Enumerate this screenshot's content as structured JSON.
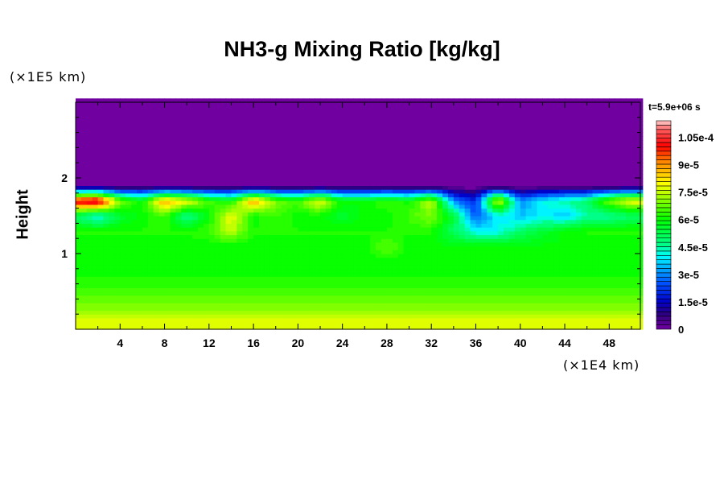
{
  "chart_data": {
    "type": "heatmap",
    "title": "NH3-g Mixing Ratio [kg/kg]",
    "ylabel": "Height",
    "yunit": "(×1E5 km)",
    "xunit": "(×1E4 km)",
    "time_label": "t=5.9e+06 s",
    "xlim": [
      0,
      50.8
    ],
    "ylim": [
      0,
      3
    ],
    "xticks": [
      4,
      8,
      12,
      16,
      20,
      24,
      28,
      32,
      36,
      40,
      44,
      48
    ],
    "xtick_labels": [
      "4",
      "8",
      "12",
      "16",
      "20",
      "24",
      "28",
      "32",
      "36",
      "40",
      "44",
      "48"
    ],
    "yticks": [
      1,
      2
    ],
    "ytick_labels": [
      "1",
      "2"
    ],
    "colorbar": {
      "min": 0,
      "max": 11.4,
      "scale": 1e-05,
      "levels": 48,
      "ticks": [
        0,
        1.5,
        3,
        4.5,
        6,
        7.5,
        9,
        10.5
      ],
      "tick_labels": [
        "0",
        "1.5e-5",
        "3e-5",
        "4.5e-5",
        "6e-5",
        "7.5e-5",
        "9e-5",
        "1.05e-4"
      ]
    },
    "z_units": "1e-5 kg/kg",
    "x": [
      0,
      2,
      4,
      6,
      8,
      10,
      12,
      14,
      16,
      18,
      20,
      22,
      24,
      26,
      28,
      30,
      32,
      34,
      36,
      38,
      40,
      42,
      44,
      46,
      48,
      50
    ],
    "y": [
      0.1,
      0.3,
      0.5,
      0.7,
      0.9,
      1.1,
      1.3,
      1.5,
      1.7,
      1.9,
      2.1,
      2.3,
      2.5,
      2.7,
      2.9
    ],
    "z": [
      [
        7.8,
        7.8,
        7.8,
        7.8,
        7.8,
        7.8,
        7.8,
        7.8,
        7.8,
        7.8,
        7.8,
        7.8,
        7.8,
        7.8,
        7.8,
        7.8,
        7.8,
        7.8,
        7.8,
        7.8,
        7.8,
        7.8,
        7.8,
        7.8,
        7.8,
        7.8
      ],
      [
        7.0,
        7.0,
        7.0,
        7.0,
        7.0,
        7.0,
        7.0,
        7.0,
        7.0,
        7.0,
        7.0,
        7.0,
        7.0,
        7.0,
        7.0,
        7.0,
        7.0,
        7.0,
        7.0,
        7.0,
        7.0,
        7.0,
        7.0,
        7.0,
        7.0,
        7.0
      ],
      [
        6.5,
        6.5,
        6.5,
        6.5,
        6.5,
        6.5,
        6.5,
        6.5,
        6.5,
        6.5,
        6.5,
        6.5,
        6.5,
        6.5,
        6.5,
        6.5,
        6.5,
        6.5,
        6.5,
        6.5,
        6.5,
        6.5,
        6.5,
        6.5,
        6.5,
        6.5
      ],
      [
        6.2,
        6.2,
        6.2,
        6.2,
        6.2,
        6.2,
        6.2,
        6.2,
        6.2,
        6.2,
        6.2,
        6.2,
        6.2,
        6.2,
        6.2,
        6.2,
        6.2,
        6.2,
        6.2,
        6.2,
        6.2,
        6.2,
        6.2,
        6.2,
        6.2,
        6.2
      ],
      [
        6.0,
        6.0,
        6.0,
        6.0,
        6.0,
        6.0,
        6.0,
        6.0,
        6.0,
        6.0,
        6.0,
        6.0,
        6.0,
        6.0,
        6.0,
        6.0,
        6.0,
        6.0,
        6.0,
        6.0,
        6.0,
        6.0,
        6.0,
        6.0,
        6.0,
        6.0
      ],
      [
        6.0,
        6.0,
        6.0,
        6.0,
        6.0,
        6.0,
        6.0,
        6.0,
        6.0,
        6.0,
        6.0,
        6.0,
        6.0,
        6.0,
        6.8,
        6.0,
        6.0,
        6.0,
        6.0,
        6.0,
        6.0,
        6.0,
        6.0,
        6.0,
        6.0,
        6.0
      ],
      [
        6.2,
        6.2,
        6.2,
        6.2,
        6.2,
        6.2,
        6.5,
        7.5,
        6.2,
        6.2,
        6.2,
        6.2,
        6.2,
        6.2,
        6.2,
        6.2,
        6.2,
        5.0,
        4.0,
        4.0,
        5.0,
        5.5,
        6.0,
        6.2,
        6.2,
        6.2
      ],
      [
        5.0,
        4.0,
        5.5,
        6.0,
        6.5,
        4.5,
        6.0,
        8.0,
        6.0,
        6.5,
        6.0,
        6.0,
        5.5,
        6.0,
        6.0,
        6.5,
        7.0,
        5.5,
        2.5,
        4.0,
        3.5,
        4.0,
        3.5,
        4.5,
        4.5,
        5.0
      ],
      [
        10.5,
        11.0,
        7.0,
        6.0,
        9.0,
        8.0,
        6.5,
        6.0,
        9.0,
        7.0,
        6.5,
        8.0,
        6.0,
        6.0,
        6.5,
        6.0,
        7.5,
        3.0,
        2.0,
        8.0,
        3.0,
        4.0,
        4.5,
        5.0,
        7.0,
        8.0
      ],
      [
        0,
        0,
        0,
        0,
        0,
        0,
        0,
        0,
        0,
        0,
        0,
        0,
        0,
        0,
        0,
        0,
        0,
        0,
        0,
        0,
        0,
        0,
        0,
        0,
        0,
        0
      ],
      [
        0,
        0,
        0,
        0,
        0,
        0,
        0,
        0,
        0,
        0,
        0,
        0,
        0,
        0,
        0,
        0,
        0,
        0,
        0,
        0,
        0,
        0,
        0,
        0,
        0,
        0
      ],
      [
        0,
        0,
        0,
        0,
        0,
        0,
        0,
        0,
        0,
        0,
        0,
        0,
        0,
        0,
        0,
        0,
        0,
        0,
        0,
        0,
        0,
        0,
        0,
        0,
        0,
        0
      ],
      [
        0,
        0,
        0,
        0,
        0,
        0,
        0,
        0,
        0,
        0,
        0,
        0,
        0,
        0,
        0,
        0,
        0,
        0,
        0,
        0,
        0,
        0,
        0,
        0,
        0,
        0
      ],
      [
        0,
        0,
        0,
        0,
        0,
        0,
        0,
        0,
        0,
        0,
        0,
        0,
        0,
        0,
        0,
        0,
        0,
        0,
        0,
        0,
        0,
        0,
        0,
        0,
        0,
        0
      ],
      [
        0,
        0,
        0,
        0,
        0,
        0,
        0,
        0,
        0,
        0,
        0,
        0,
        0,
        0,
        0,
        0,
        0,
        0,
        0,
        0,
        0,
        0,
        0,
        0,
        0,
        0
      ]
    ]
  }
}
